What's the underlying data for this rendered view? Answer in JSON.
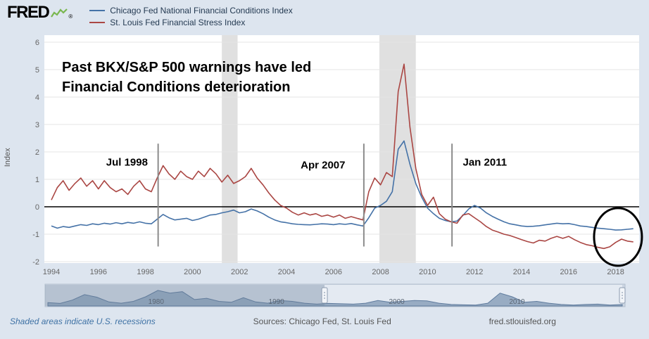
{
  "header": {
    "logo_text": "FRED",
    "registered_mark": "®",
    "legend": [
      {
        "label": "Chicago Fed National Financial Conditions Index",
        "color": "#4572a7"
      },
      {
        "label": "St. Louis Fed Financial Stress Index",
        "color": "#aa4643"
      }
    ]
  },
  "chart_data": {
    "type": "line",
    "title": "",
    "ylabel": "Index",
    "ylim": [
      -2,
      6
    ],
    "y_ticks": [
      6,
      5,
      4,
      3,
      2,
      1,
      0,
      -1,
      -2
    ],
    "x_ticks": [
      1994,
      1996,
      1998,
      2000,
      2002,
      2004,
      2006,
      2008,
      2010,
      2012,
      2014,
      2016,
      2018
    ],
    "x_min": 1993.7,
    "x_max": 2019.0,
    "x_start": 1994.0,
    "x_step": 0.25,
    "grid": true,
    "legend_position": "top-left",
    "series": [
      {
        "name": "Chicago Fed National Financial Conditions Index",
        "color": "#4572a7",
        "values": [
          -0.7,
          -0.78,
          -0.72,
          -0.75,
          -0.7,
          -0.65,
          -0.68,
          -0.62,
          -0.65,
          -0.6,
          -0.63,
          -0.58,
          -0.62,
          -0.57,
          -0.6,
          -0.55,
          -0.6,
          -0.62,
          -0.45,
          -0.28,
          -0.4,
          -0.48,
          -0.45,
          -0.42,
          -0.5,
          -0.45,
          -0.38,
          -0.3,
          -0.28,
          -0.22,
          -0.18,
          -0.12,
          -0.22,
          -0.18,
          -0.08,
          -0.15,
          -0.25,
          -0.38,
          -0.48,
          -0.55,
          -0.58,
          -0.62,
          -0.64,
          -0.65,
          -0.66,
          -0.64,
          -0.62,
          -0.63,
          -0.65,
          -0.62,
          -0.64,
          -0.61,
          -0.66,
          -0.7,
          -0.4,
          -0.05,
          0.05,
          0.2,
          0.55,
          2.1,
          2.4,
          1.55,
          0.85,
          0.35,
          -0.05,
          -0.25,
          -0.42,
          -0.5,
          -0.55,
          -0.52,
          -0.32,
          -0.08,
          0.05,
          -0.05,
          -0.22,
          -0.35,
          -0.45,
          -0.55,
          -0.62,
          -0.66,
          -0.7,
          -0.72,
          -0.71,
          -0.69,
          -0.66,
          -0.63,
          -0.6,
          -0.62,
          -0.61,
          -0.65,
          -0.7,
          -0.72,
          -0.75,
          -0.78,
          -0.8,
          -0.82,
          -0.85,
          -0.84,
          -0.82,
          -0.8
        ]
      },
      {
        "name": "St. Louis Fed Financial Stress Index",
        "color": "#aa4643",
        "values": [
          0.25,
          0.7,
          0.95,
          0.6,
          0.85,
          1.05,
          0.75,
          0.95,
          0.65,
          0.95,
          0.7,
          0.55,
          0.65,
          0.45,
          0.75,
          0.95,
          0.65,
          0.55,
          1.05,
          1.5,
          1.2,
          1.0,
          1.3,
          1.1,
          1.0,
          1.3,
          1.1,
          1.4,
          1.2,
          0.9,
          1.15,
          0.85,
          0.95,
          1.1,
          1.4,
          1.05,
          0.8,
          0.5,
          0.25,
          0.05,
          -0.05,
          -0.2,
          -0.3,
          -0.22,
          -0.3,
          -0.25,
          -0.35,
          -0.3,
          -0.38,
          -0.3,
          -0.42,
          -0.36,
          -0.42,
          -0.48,
          0.55,
          1.05,
          0.8,
          1.25,
          1.1,
          4.2,
          5.2,
          2.9,
          1.4,
          0.45,
          0.05,
          0.35,
          -0.25,
          -0.45,
          -0.55,
          -0.6,
          -0.3,
          -0.25,
          -0.4,
          -0.55,
          -0.72,
          -0.85,
          -0.92,
          -1.0,
          -1.05,
          -1.12,
          -1.2,
          -1.27,
          -1.32,
          -1.22,
          -1.25,
          -1.15,
          -1.08,
          -1.15,
          -1.08,
          -1.2,
          -1.3,
          -1.38,
          -1.42,
          -1.48,
          -1.52,
          -1.46,
          -1.3,
          -1.18,
          -1.25,
          -1.28
        ]
      }
    ],
    "recessions": [
      {
        "start": 2001.25,
        "end": 2001.92
      },
      {
        "start": 2007.95,
        "end": 2009.5
      }
    ],
    "annotations": {
      "title_line1": "Past BKX/S&P 500 warnings have led",
      "title_line2": "Financial Conditions deterioration",
      "events": [
        {
          "label": "Jul 1998",
          "year": 1998.54,
          "label_year": 1998.1,
          "label_value": 1.5,
          "anchor": "end"
        },
        {
          "label": "Apr 2007",
          "year": 2007.29,
          "label_year": 2006.5,
          "label_value": 1.4,
          "anchor": "end"
        },
        {
          "label": "Jan 2011",
          "year": 2011.04,
          "label_year": 2011.5,
          "label_value": 1.5,
          "anchor": "start"
        }
      ]
    },
    "highlight_ellipse": {
      "year": 2018.1,
      "value": -1.1,
      "rx": 34,
      "ry": 41
    }
  },
  "minimap": {
    "start_year": 1971,
    "end_year": 2018.75,
    "selection_start": 1994,
    "selection_end": 2018.75,
    "tick_years": [
      1980,
      1990,
      2000,
      2010
    ],
    "values": [
      0.18,
      0.14,
      0.32,
      0.62,
      0.48,
      0.22,
      0.15,
      0.25,
      0.5,
      0.85,
      0.7,
      0.78,
      0.35,
      0.42,
      0.25,
      0.2,
      0.45,
      0.22,
      0.15,
      0.3,
      0.25,
      0.15,
      0.1,
      0.14,
      0.12,
      0.1,
      0.15,
      0.3,
      0.2,
      0.25,
      0.3,
      0.28,
      0.15,
      0.08,
      0.06,
      0.05,
      0.15,
      0.7,
      0.5,
      0.2,
      0.25,
      0.15,
      0.08,
      0.05,
      0.08,
      0.1,
      0.05,
      0.08
    ]
  },
  "footer": {
    "note": "Shaded areas indicate U.S. recessions",
    "sources": "Sources: Chicago Fed, St. Louis Fed",
    "site": "fred.stlouisfed.org"
  },
  "colors": {
    "background": "#dde5ef",
    "plot_background": "#ffffff",
    "gridline": "#e5e5e5",
    "zero_line": "#000000",
    "recession_band": "#e0e0e0",
    "event_line": "#8c8c8c",
    "tick_text": "#666666",
    "logo_spark_green": "#79b74f"
  }
}
